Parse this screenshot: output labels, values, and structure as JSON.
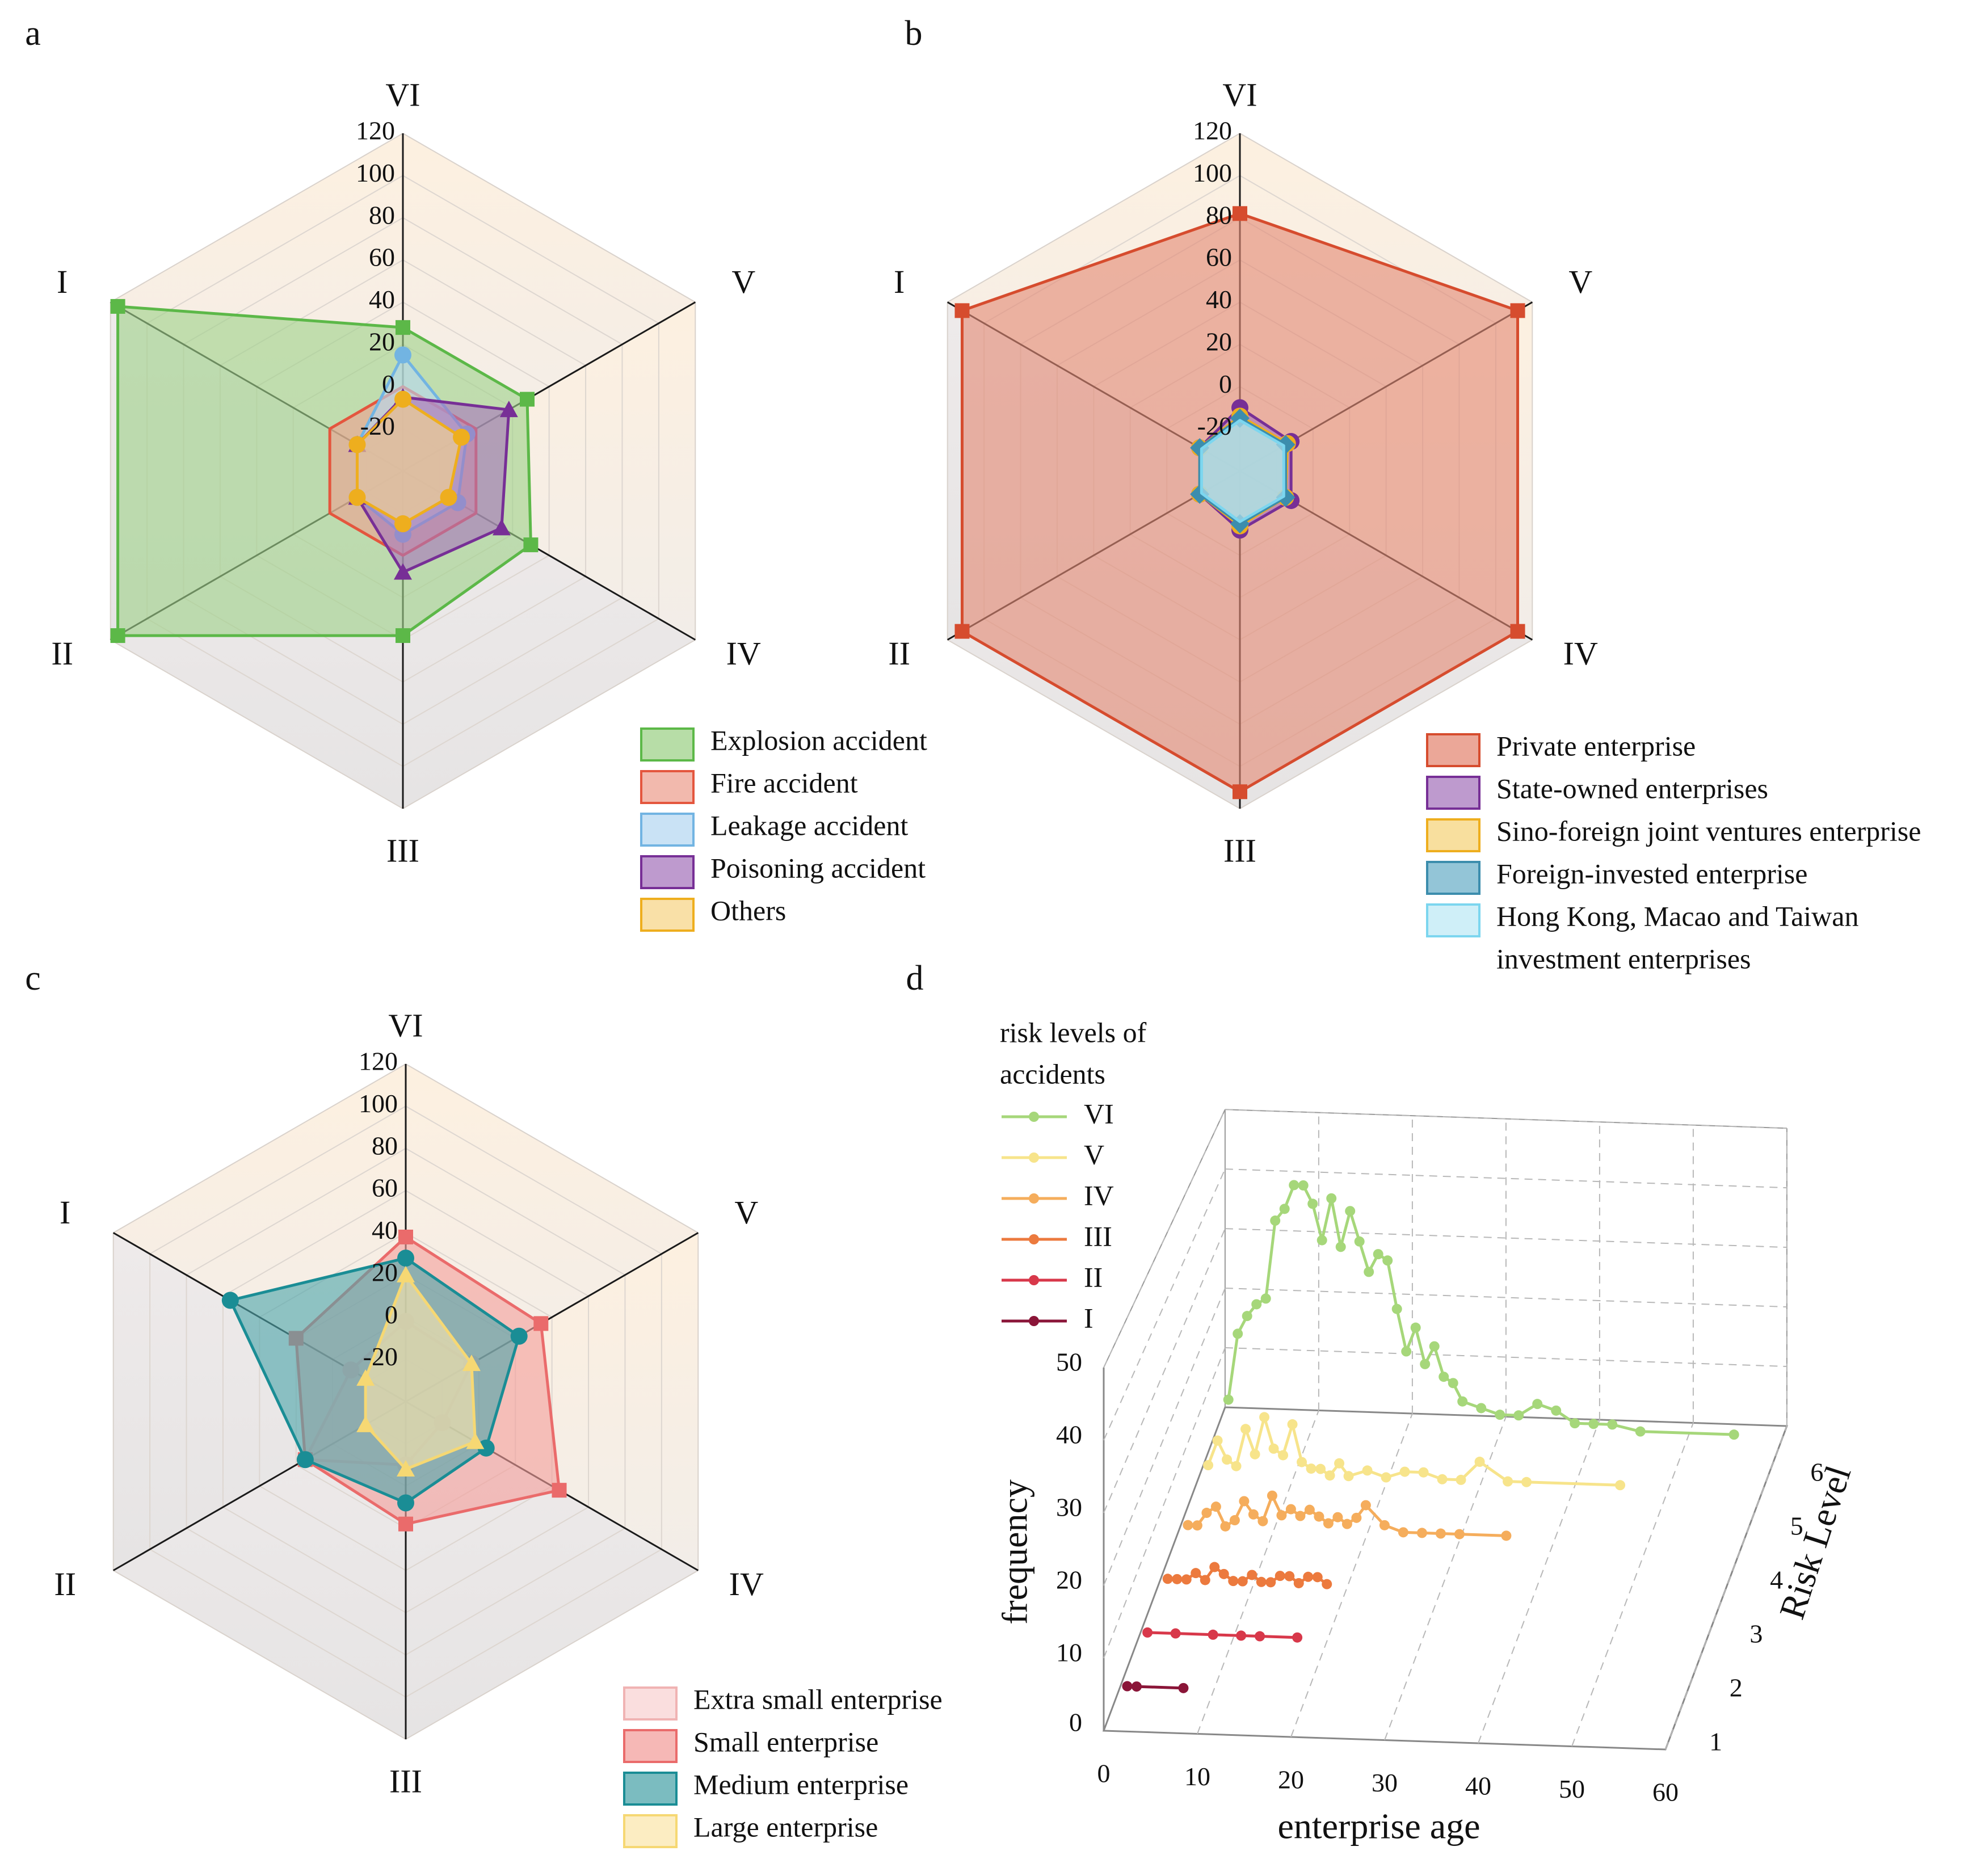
{
  "panels": [
    "a",
    "b",
    "c",
    "d"
  ],
  "chart_data": [
    {
      "id": "a",
      "type": "radar",
      "axes": [
        "VI",
        "V",
        "IV",
        "III",
        "II",
        "I"
      ],
      "rticks": [
        "-20",
        "0",
        "20",
        "40",
        "60",
        "80",
        "100",
        "120"
      ],
      "rlim": [
        -40,
        120
      ],
      "markerShape": "mixed",
      "series": [
        {
          "name": "Explosion accident",
          "color": "#5cb848",
          "fill": "#9fd28a",
          "marker": "square",
          "values": [
            28,
            28,
            30,
            38,
            116,
            116
          ]
        },
        {
          "name": "Fire accident",
          "color": "#e4563e",
          "fill": "#eea192",
          "marker": "none",
          "values": [
            0,
            0,
            0,
            0,
            0,
            0
          ]
        },
        {
          "name": "Leakage accident",
          "color": "#72b4e2",
          "fill": "#b7d8f1",
          "marker": "circle",
          "values": [
            15,
            -5,
            -10,
            -10,
            -15,
            -15
          ]
        },
        {
          "name": "Poisoning accident",
          "color": "#772f96",
          "fill": "#a878bd",
          "marker": "triangle",
          "values": [
            -5,
            18,
            14,
            8,
            -15,
            -15
          ]
        },
        {
          "name": "Others",
          "color": "#eeae1e",
          "fill": "#f7d58a",
          "marker": "circle",
          "values": [
            -6,
            -8,
            -15,
            -15,
            -15,
            -15
          ]
        }
      ]
    },
    {
      "id": "b",
      "type": "radar",
      "axes": [
        "VI",
        "V",
        "IV",
        "III",
        "II",
        "I"
      ],
      "rticks": [
        "-20",
        "0",
        "20",
        "40",
        "60",
        "80",
        "100",
        "120"
      ],
      "rlim": [
        -40,
        120
      ],
      "series": [
        {
          "name": "Private enterprise",
          "color": "#d64c2e",
          "fill": "#e48a76",
          "marker": "square",
          "values": [
            82,
            112,
            112,
            112,
            112,
            112
          ]
        },
        {
          "name": "State-owned enterprises",
          "color": "#772f96",
          "fill": "#a878bd",
          "marker": "circle",
          "values": [
            -10,
            -12,
            -12,
            -12,
            -18,
            -18
          ]
        },
        {
          "name": "Sino-foreign joint ventures enterprise",
          "color": "#eeae1e",
          "fill": "#f6d47e",
          "marker": "circle",
          "values": [
            -14,
            -14,
            -15,
            -14,
            -18,
            -18
          ]
        },
        {
          "name": "Foreign-invested enterprise",
          "color": "#3c8dad",
          "fill": "#6fb2c9",
          "marker": "diamond",
          "values": [
            -15,
            -15,
            -15,
            -15,
            -18,
            -18
          ]
        },
        {
          "name": "Hong Kong, Macao and Taiwan investment enterprises",
          "name_line2": "investment enterprises",
          "name_line1": "Hong Kong, Macao and Taiwan",
          "color": "#7cd6ef",
          "fill": "#bfeaf6",
          "marker": "none",
          "values": [
            -16,
            -16,
            -16,
            -16,
            -19,
            -19
          ]
        }
      ]
    },
    {
      "id": "c",
      "type": "radar",
      "axes": [
        "VI",
        "V",
        "IV",
        "III",
        "II",
        "I"
      ],
      "rticks": [
        "-20",
        "0",
        "20",
        "40",
        "60",
        "80",
        "100",
        "120"
      ],
      "rlim": [
        -40,
        120
      ],
      "series": [
        {
          "name": "Extra small enterprise",
          "color": "#f0b3b3",
          "fill": "#f8d3d3",
          "marker": "circle",
          "values": [
            -2,
            -4,
            -20,
            -10,
            15,
            -10
          ]
        },
        {
          "name": "Small enterprise",
          "color": "#ea6b6b",
          "fill": "#f3a09d",
          "marker": "square",
          "values": [
            38,
            34,
            44,
            18,
            15,
            20
          ]
        },
        {
          "name": "Medium enterprise",
          "color": "#1a8d95",
          "fill": "#4fa6ab",
          "marker": "circle",
          "values": [
            28,
            22,
            4,
            8,
            15,
            56
          ]
        },
        {
          "name": "Large enterprise",
          "color": "#f6d873",
          "fill": "#fbe7ad",
          "marker": "triangle",
          "values": [
            20,
            -4,
            -2,
            -8,
            -18,
            -18
          ]
        }
      ]
    },
    {
      "id": "d",
      "type": "line3d",
      "xlabel": "enterprise age",
      "ylabel": "Risk Level",
      "zlabel": "frequency",
      "xticks": [
        "0",
        "10",
        "20",
        "30",
        "40",
        "50",
        "60"
      ],
      "yticks": [
        "1",
        "2",
        "3",
        "4",
        "5",
        "6"
      ],
      "zticks": [
        "0",
        "10",
        "20",
        "30",
        "40",
        "50"
      ],
      "xlim": [
        0,
        60
      ],
      "zlim": [
        0,
        50
      ],
      "legend_title_line1": "risk levels of",
      "legend_title_line2": "accidents",
      "series": [
        {
          "name": "VI",
          "level": 6,
          "color": "#a6d77a",
          "x": [
            1,
            2,
            3,
            4,
            5,
            6,
            7,
            8,
            9,
            10,
            11,
            12,
            13,
            14,
            15,
            16,
            17,
            18,
            19,
            20,
            21,
            22,
            23,
            24,
            25,
            26,
            28,
            30,
            32,
            34,
            36,
            38,
            40,
            42,
            45,
            55
          ],
          "y": [
            4,
            15,
            18,
            20,
            21,
            34,
            36,
            40,
            40,
            37,
            31,
            38,
            30,
            36,
            31,
            26,
            29,
            28,
            20,
            13,
            17,
            11,
            14,
            9,
            8,
            5,
            4,
            3,
            3,
            5,
            4,
            2,
            2,
            2,
            1,
            1
          ]
        },
        {
          "name": "V",
          "level": 5,
          "color": "#f7e48b",
          "x": [
            1,
            2,
            3,
            4,
            5,
            6,
            7,
            8,
            9,
            10,
            11,
            12,
            13,
            14,
            15,
            16,
            18,
            20,
            22,
            24,
            26,
            28,
            30,
            33,
            35,
            45
          ],
          "y": [
            2,
            6,
            3,
            2,
            8,
            4,
            10,
            5,
            4,
            9,
            3,
            2,
            2,
            1,
            3,
            1,
            2,
            1,
            2,
            2,
            1,
            1,
            4,
            1,
            1,
            1
          ]
        },
        {
          "name": "IV",
          "level": 4,
          "color": "#f5ad5c",
          "x": [
            1,
            2,
            3,
            4,
            5,
            6,
            7,
            8,
            9,
            10,
            11,
            12,
            13,
            14,
            15,
            16,
            17,
            18,
            19,
            20,
            22,
            24,
            26,
            28,
            30,
            35
          ],
          "y": [
            1,
            1,
            3,
            4,
            1,
            2,
            5,
            3,
            2,
            6,
            3,
            4,
            3,
            4,
            3,
            2,
            3,
            2,
            3,
            5,
            2,
            1,
            1,
            1,
            1,
            1
          ]
        },
        {
          "name": "III",
          "level": 3,
          "color": "#ec7a3e",
          "x": [
            1,
            2,
            3,
            4,
            5,
            6,
            7,
            8,
            9,
            10,
            11,
            12,
            13,
            14,
            15,
            16,
            17,
            18
          ],
          "y": [
            1,
            1,
            1,
            2,
            1,
            3,
            2,
            1,
            1,
            2,
            1,
            1,
            2,
            2,
            1,
            2,
            2,
            1
          ]
        },
        {
          "name": "II",
          "level": 2,
          "color": "#d8384a",
          "x": [
            1,
            4,
            8,
            11,
            13,
            17
          ],
          "y": [
            1,
            1,
            1,
            1,
            1,
            1
          ]
        },
        {
          "name": "I",
          "level": 1,
          "color": "#8a1538",
          "x": [
            1,
            2,
            7
          ],
          "y": [
            1,
            1,
            1
          ]
        }
      ]
    }
  ]
}
